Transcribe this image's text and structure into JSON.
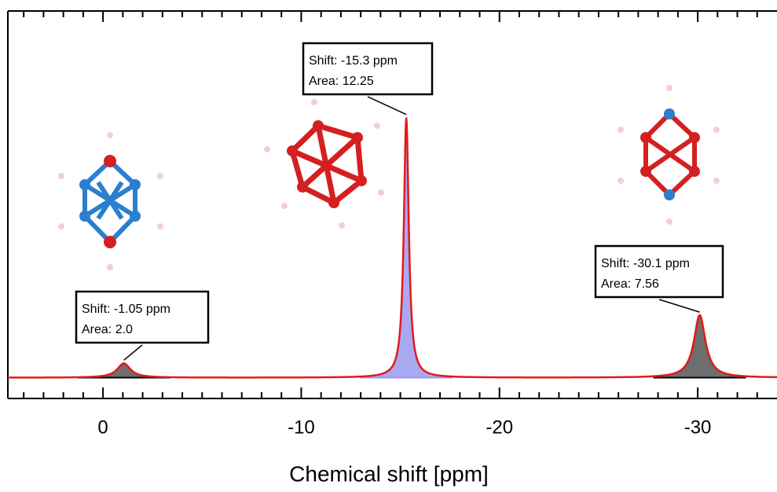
{
  "chart_data": {
    "type": "spectrum",
    "xlabel": "Chemical shift [ppm]",
    "xlim": [
      4.8,
      -34
    ],
    "xticks": [
      0,
      -10,
      -20,
      -30
    ],
    "xticks_minor": [
      4,
      3,
      2,
      1,
      -1,
      -2,
      -3,
      -4,
      -5,
      -6,
      -7,
      -8,
      -9,
      -11,
      -12,
      -13,
      -14,
      -15,
      -16,
      -17,
      -18,
      -19,
      -21,
      -22,
      -23,
      -24,
      -25,
      -26,
      -27,
      -28,
      -29,
      -31,
      -32,
      -33
    ],
    "ylim": [
      -0.08,
      1.41
    ],
    "line_color": "#e31a1c",
    "peaks": {
      "shifts": [
        -1.05,
        -15.3,
        -30.1
      ],
      "shift_labels": [
        "Shift: -1.05 ppm",
        "Shift: -15.3 ppm",
        "Shift: -30.1 ppm"
      ],
      "areas": [
        2.0,
        12.25,
        7.56
      ],
      "area_labels": [
        "Area: 2.0",
        "Area: 12.25",
        "Area: 7.56"
      ],
      "heights": [
        0.055,
        1.0,
        0.24
      ],
      "widths": [
        0.8,
        0.3,
        0.7
      ],
      "colors": [
        "#555555",
        "#9a9af0",
        "#555555"
      ]
    }
  }
}
